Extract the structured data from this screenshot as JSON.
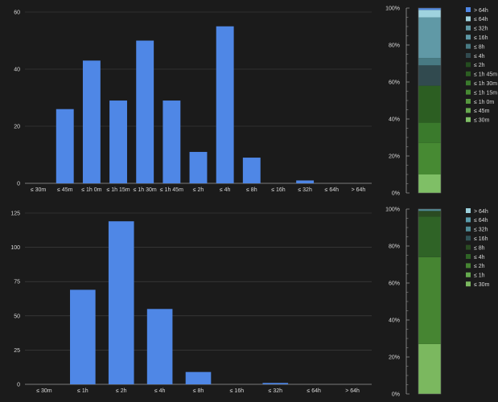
{
  "colors": {
    "background": "#1b1b1b",
    "grid": "#444444",
    "axis": "#9a9a9a",
    "text": "#d8d8d8",
    "bar": "#4f87e6"
  },
  "chart_data": [
    {
      "type": "bar",
      "categories": [
        "≤ 30m",
        "≤ 45m",
        "≤ 1h 0m",
        "≤ 1h 15m",
        "≤ 1h 30m",
        "≤ 1h 45m",
        "≤ 2h",
        "≤ 4h",
        "≤ 8h",
        "≤ 16h",
        "≤ 32h",
        "≤ 64h",
        "> 64h"
      ],
      "values": [
        0,
        26,
        43,
        29,
        50,
        29,
        11,
        55,
        9,
        0,
        1,
        0,
        0
      ],
      "ylim": [
        0,
        60
      ],
      "yticks": [
        "0",
        "20",
        "40",
        "60"
      ],
      "grid": true,
      "color": "#4f87e6"
    },
    {
      "type": "bar",
      "stacked": true,
      "percent": true,
      "yticks": [
        "0%",
        "20%",
        "40%",
        "60%",
        "80%",
        "100%"
      ],
      "legend_position": "right",
      "series": [
        {
          "name": "≤ 30m",
          "value": 10,
          "color": "#7fbf66"
        },
        {
          "name": "≤ 45m",
          "value": 0,
          "color": "#67a94f"
        },
        {
          "name": "≤ 1h 0m",
          "value": 0,
          "color": "#56983f"
        },
        {
          "name": "≤ 1h 15m",
          "value": 17,
          "color": "#478a33"
        },
        {
          "name": "≤ 1h 30m",
          "value": 11,
          "color": "#3a7a2c"
        },
        {
          "name": "≤ 1h 45m",
          "value": 20,
          "color": "#2c5e22"
        },
        {
          "name": "≤ 2h",
          "value": 0,
          "color": "#244c1f"
        },
        {
          "name": "≤ 4h",
          "value": 11,
          "color": "#314a4f"
        },
        {
          "name": "≤ 8h",
          "value": 4,
          "color": "#487a83"
        },
        {
          "name": "≤ 16h",
          "value": 0,
          "color": "#5d97a5"
        },
        {
          "name": "≤ 32h",
          "value": 22,
          "color": "#6099a6"
        },
        {
          "name": "≤ 64h",
          "value": 4,
          "color": "#9fd3df"
        },
        {
          "name": "> 64h",
          "value": 1,
          "color": "#4f87e6"
        }
      ],
      "legend_order": [
        "> 64h",
        "≤ 64h",
        "≤ 32h",
        "≤ 16h",
        "≤ 8h",
        "≤ 4h",
        "≤ 2h",
        "≤ 1h 45m",
        "≤ 1h 30m",
        "≤ 1h 15m",
        "≤ 1h 0m",
        "≤ 45m",
        "≤ 30m"
      ]
    },
    {
      "type": "bar",
      "categories": [
        "≤ 30m",
        "≤ 1h",
        "≤ 2h",
        "≤ 4h",
        "≤ 8h",
        "≤ 16h",
        "≤ 32h",
        "≤ 64h",
        "> 64h"
      ],
      "values": [
        0,
        69,
        119,
        55,
        9,
        0,
        1,
        0,
        0
      ],
      "ylim": [
        0,
        125
      ],
      "yticks": [
        "0",
        "25",
        "50",
        "75",
        "100",
        "125"
      ],
      "grid": true,
      "color": "#4f87e6"
    },
    {
      "type": "bar",
      "stacked": true,
      "percent": true,
      "yticks": [
        "0%",
        "20%",
        "40%",
        "60%",
        "80%",
        "100%"
      ],
      "legend_position": "right",
      "series": [
        {
          "name": "≤ 30m",
          "value": 27,
          "color": "#7bb85f"
        },
        {
          "name": "≤ 1h",
          "value": 0,
          "color": "#65a94e"
        },
        {
          "name": "≤ 2h",
          "value": 47,
          "color": "#468532"
        },
        {
          "name": "≤ 4h",
          "value": 22,
          "color": "#2f6326"
        },
        {
          "name": "≤ 8h",
          "value": 3,
          "color": "#2a4b22"
        },
        {
          "name": "≤ 16h",
          "value": 0,
          "color": "#2f5256"
        },
        {
          "name": "≤ 32h",
          "value": 1,
          "color": "#4f8b96"
        },
        {
          "name": "≤ 64h",
          "value": 0,
          "color": "#5a9cac"
        },
        {
          "name": "> 64h",
          "value": 0,
          "color": "#9cd1dc"
        }
      ],
      "legend_order": [
        "> 64h",
        "≤ 64h",
        "≤ 32h",
        "≤ 16h",
        "≤ 8h",
        "≤ 4h",
        "≤ 2h",
        "≤ 1h",
        "≤ 30m"
      ]
    }
  ]
}
